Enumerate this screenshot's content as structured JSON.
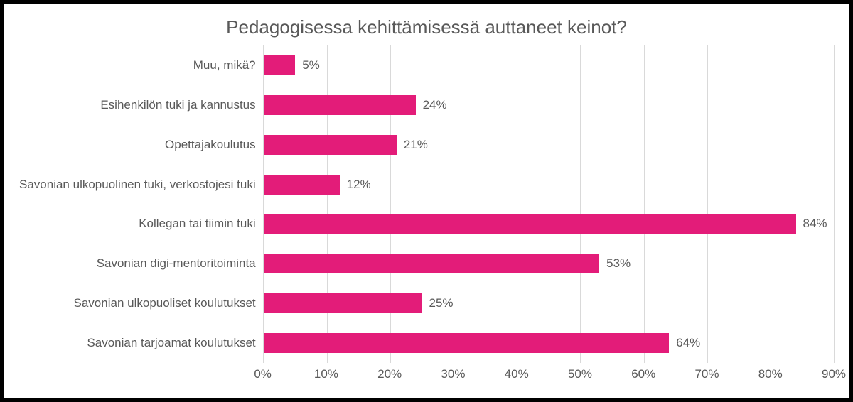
{
  "chart": {
    "type": "bar-horizontal",
    "title": "Pedagogisessa kehittämisessä auttaneet keinot?",
    "title_fontsize": 26,
    "title_color": "#595959",
    "background_color": "#ffffff",
    "frame_border_color": "#000000",
    "frame_border_width": 5,
    "bar_color": "#e31c79",
    "bar_height_ratio": 0.5,
    "label_color": "#595959",
    "label_fontsize": 17,
    "value_label_suffix": "%",
    "grid_color": "#d9d9d9",
    "x_axis": {
      "min": 0,
      "max": 90,
      "tick_step": 10,
      "ticks": [
        "0%",
        "10%",
        "20%",
        "30%",
        "40%",
        "50%",
        "60%",
        "70%",
        "80%",
        "90%"
      ]
    },
    "categories": [
      "Muu, mikä?",
      "Esihenkilön tuki ja kannustus",
      "Opettajakoulutus",
      "Savonian ulkopuolinen tuki, verkostojesi tuki",
      "Kollegan tai tiimin tuki",
      "Savonian digi-mentoritoiminta",
      "Savonian ulkopuoliset koulutukset",
      "Savonian tarjoamat koulutukset"
    ],
    "values": [
      5,
      24,
      21,
      12,
      84,
      53,
      25,
      64
    ],
    "value_labels": [
      "5%",
      "24%",
      "21%",
      "12%",
      "84%",
      "53%",
      "25%",
      "64%"
    ]
  }
}
